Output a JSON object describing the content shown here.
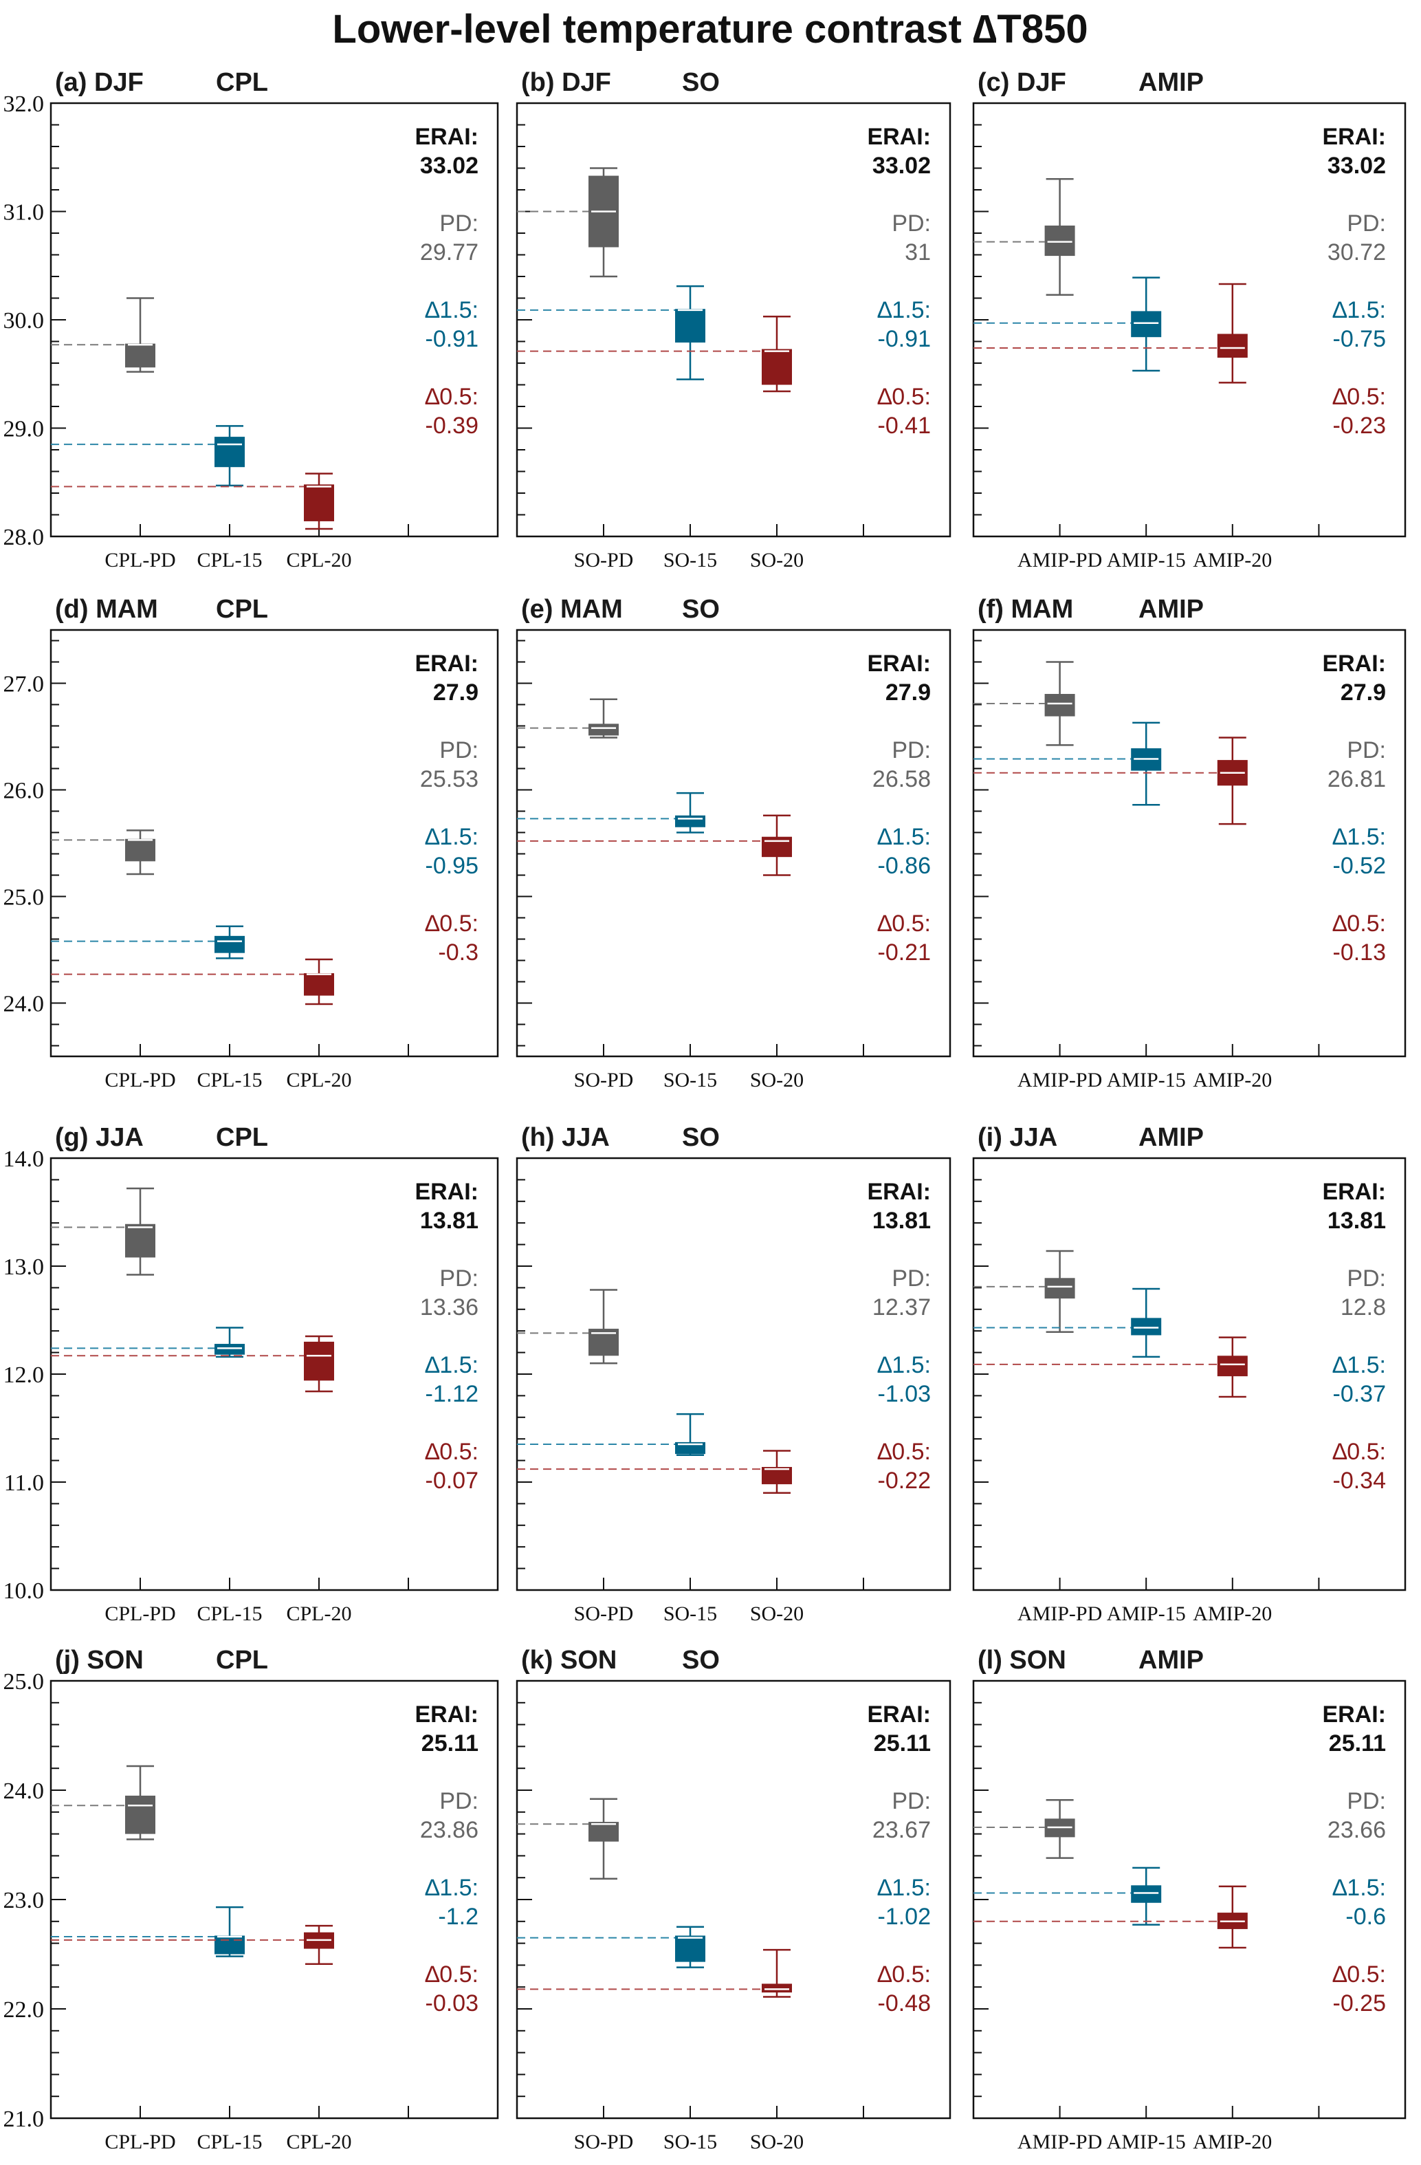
{
  "colors": {
    "erai": "#111111",
    "pd": "#5f5f5f",
    "pd_text": "#666666",
    "d15": "#006487",
    "d05": "#8b1a1a",
    "median": "#ffffff"
  },
  "chart_data": {
    "type": "boxplot-grid",
    "title": "Lower-level temperature contrast ∆T850",
    "rows": 4,
    "cols": 3,
    "panels": [
      {
        "id": "a",
        "label": "(a) DJF",
        "model": "CPL",
        "ylim": [
          28,
          32
        ],
        "yticks": [
          "32.0",
          "31.0",
          "30.0",
          "29.0",
          "28.0"
        ],
        "show_ytick_labels": true,
        "categories": [
          "CPL-PD",
          "CPL-15",
          "CPL-20"
        ],
        "boxes": [
          {
            "whislo": 29.52,
            "q1": 29.56,
            "med": 29.77,
            "q3": 29.78,
            "whishi": 30.2
          },
          {
            "whislo": 28.47,
            "q1": 28.64,
            "med": 28.85,
            "q3": 28.92,
            "whishi": 29.02
          },
          {
            "whislo": 28.07,
            "q1": 28.14,
            "med": 28.46,
            "q3": 28.48,
            "whishi": 28.58
          }
        ],
        "annotations": {
          "erai_label": "ERAI:",
          "erai": "33.02",
          "pd_label": "PD:",
          "pd": "29.77",
          "d15_label": "∆1.5:",
          "d15": "-0.91",
          "d05_label": "∆0.5:",
          "d05": "-0.39"
        }
      },
      {
        "id": "b",
        "label": "(b) DJF",
        "model": "SO",
        "ylim": [
          28,
          32
        ],
        "yticks": [
          "32.0",
          "31.0",
          "30.0",
          "29.0",
          "28.0"
        ],
        "show_ytick_labels": false,
        "categories": [
          "SO-PD",
          "SO-15",
          "SO-20"
        ],
        "boxes": [
          {
            "whislo": 30.4,
            "q1": 30.67,
            "med": 31.0,
            "q3": 31.33,
            "whishi": 31.4
          },
          {
            "whislo": 29.45,
            "q1": 29.79,
            "med": 30.09,
            "q3": 30.1,
            "whishi": 30.31
          },
          {
            "whislo": 29.34,
            "q1": 29.4,
            "med": 29.71,
            "q3": 29.73,
            "whishi": 30.03
          }
        ],
        "annotations": {
          "erai_label": "ERAI:",
          "erai": "33.02",
          "pd_label": "PD:",
          "pd": "31",
          "d15_label": "∆1.5:",
          "d15": "-0.91",
          "d05_label": "∆0.5:",
          "d05": "-0.41"
        }
      },
      {
        "id": "c",
        "label": "(c) DJF",
        "model": "AMIP",
        "ylim": [
          28,
          32
        ],
        "yticks": [
          "32.0",
          "31.0",
          "30.0",
          "29.0",
          "28.0"
        ],
        "show_ytick_labels": false,
        "categories": [
          "AMIP-PD",
          "AMIP-15",
          "AMIP-20"
        ],
        "boxes": [
          {
            "whislo": 30.23,
            "q1": 30.59,
            "med": 30.72,
            "q3": 30.87,
            "whishi": 31.3
          },
          {
            "whislo": 29.53,
            "q1": 29.84,
            "med": 29.97,
            "q3": 30.08,
            "whishi": 30.39
          },
          {
            "whislo": 29.42,
            "q1": 29.65,
            "med": 29.74,
            "q3": 29.87,
            "whishi": 30.33
          }
        ],
        "annotations": {
          "erai_label": "ERAI:",
          "erai": "33.02",
          "pd_label": "PD:",
          "pd": "30.72",
          "d15_label": "∆1.5:",
          "d15": "-0.75",
          "d05_label": "∆0.5:",
          "d05": "-0.23"
        }
      },
      {
        "id": "d",
        "label": "(d) MAM",
        "model": "CPL",
        "ylim": [
          23.5,
          27.5
        ],
        "yticks": [
          "27.0",
          "26.0",
          "25.0",
          "24.0"
        ],
        "show_ytick_labels": true,
        "categories": [
          "CPL-PD",
          "CPL-15",
          "CPL-20"
        ],
        "boxes": [
          {
            "whislo": 25.21,
            "q1": 25.33,
            "med": 25.53,
            "q3": 25.54,
            "whishi": 25.62
          },
          {
            "whislo": 24.42,
            "q1": 24.47,
            "med": 24.58,
            "q3": 24.63,
            "whishi": 24.72
          },
          {
            "whislo": 23.99,
            "q1": 24.07,
            "med": 24.27,
            "q3": 24.28,
            "whishi": 24.41
          }
        ],
        "annotations": {
          "erai_label": "ERAI:",
          "erai": "27.9",
          "pd_label": "PD:",
          "pd": "25.53",
          "d15_label": "∆1.5:",
          "d15": "-0.95",
          "d05_label": "∆0.5:",
          "d05": "-0.3"
        }
      },
      {
        "id": "e",
        "label": "(e) MAM",
        "model": "SO",
        "ylim": [
          23.5,
          27.5
        ],
        "yticks": [
          "27.0",
          "26.0",
          "25.0",
          "24.0"
        ],
        "show_ytick_labels": false,
        "categories": [
          "SO-PD",
          "SO-15",
          "SO-20"
        ],
        "boxes": [
          {
            "whislo": 26.49,
            "q1": 26.51,
            "med": 26.58,
            "q3": 26.62,
            "whishi": 26.85
          },
          {
            "whislo": 25.6,
            "q1": 25.65,
            "med": 25.73,
            "q3": 25.76,
            "whishi": 25.97
          },
          {
            "whislo": 25.2,
            "q1": 25.37,
            "med": 25.52,
            "q3": 25.56,
            "whishi": 25.76
          }
        ],
        "annotations": {
          "erai_label": "ERAI:",
          "erai": "27.9",
          "pd_label": "PD:",
          "pd": "26.58",
          "d15_label": "∆1.5:",
          "d15": "-0.86",
          "d05_label": "∆0.5:",
          "d05": "-0.21"
        }
      },
      {
        "id": "f",
        "label": "(f) MAM",
        "model": "AMIP",
        "ylim": [
          23.5,
          27.5
        ],
        "yticks": [
          "27.0",
          "26.0",
          "25.0",
          "24.0"
        ],
        "show_ytick_labels": false,
        "categories": [
          "AMIP-PD",
          "AMIP-15",
          "AMIP-20"
        ],
        "boxes": [
          {
            "whislo": 26.42,
            "q1": 26.69,
            "med": 26.81,
            "q3": 26.9,
            "whishi": 27.2
          },
          {
            "whislo": 25.86,
            "q1": 26.18,
            "med": 26.29,
            "q3": 26.39,
            "whishi": 26.63
          },
          {
            "whislo": 25.68,
            "q1": 26.04,
            "med": 26.16,
            "q3": 26.28,
            "whishi": 26.49
          }
        ],
        "annotations": {
          "erai_label": "ERAI:",
          "erai": "27.9",
          "pd_label": "PD:",
          "pd": "26.81",
          "d15_label": "∆1.5:",
          "d15": "-0.52",
          "d05_label": "∆0.5:",
          "d05": "-0.13"
        }
      },
      {
        "id": "g",
        "label": "(g) JJA",
        "model": "CPL",
        "ylim": [
          10,
          14
        ],
        "yticks": [
          "14.0",
          "13.0",
          "12.0",
          "11.0",
          "10.0"
        ],
        "show_ytick_labels": true,
        "categories": [
          "CPL-PD",
          "CPL-15",
          "CPL-20"
        ],
        "boxes": [
          {
            "whislo": 12.92,
            "q1": 13.08,
            "med": 13.36,
            "q3": 13.39,
            "whishi": 13.72
          },
          {
            "whislo": 12.16,
            "q1": 12.18,
            "med": 12.24,
            "q3": 12.28,
            "whishi": 12.43
          },
          {
            "whislo": 11.84,
            "q1": 11.94,
            "med": 12.17,
            "q3": 12.3,
            "whishi": 12.35
          }
        ],
        "annotations": {
          "erai_label": "ERAI:",
          "erai": "13.81",
          "pd_label": "PD:",
          "pd": "13.36",
          "d15_label": "∆1.5:",
          "d15": "-1.12",
          "d05_label": "∆0.5:",
          "d05": "-0.07"
        }
      },
      {
        "id": "h",
        "label": "(h) JJA",
        "model": "SO",
        "ylim": [
          10,
          14
        ],
        "yticks": [
          "14.0",
          "13.0",
          "12.0",
          "11.0",
          "10.0"
        ],
        "show_ytick_labels": false,
        "categories": [
          "SO-PD",
          "SO-15",
          "SO-20"
        ],
        "boxes": [
          {
            "whislo": 12.1,
            "q1": 12.17,
            "med": 12.38,
            "q3": 12.42,
            "whishi": 12.78
          },
          {
            "whislo": 11.25,
            "q1": 11.26,
            "med": 11.35,
            "q3": 11.37,
            "whishi": 11.63
          },
          {
            "whislo": 10.9,
            "q1": 10.98,
            "med": 11.12,
            "q3": 11.14,
            "whishi": 11.29
          }
        ],
        "annotations": {
          "erai_label": "ERAI:",
          "erai": "13.81",
          "pd_label": "PD:",
          "pd": "12.37",
          "d15_label": "∆1.5:",
          "d15": "-1.03",
          "d05_label": "∆0.5:",
          "d05": "-0.22"
        }
      },
      {
        "id": "i",
        "label": "(i) JJA",
        "model": "AMIP",
        "ylim": [
          10,
          14
        ],
        "yticks": [
          "14.0",
          "13.0",
          "12.0",
          "11.0",
          "10.0"
        ],
        "show_ytick_labels": false,
        "categories": [
          "AMIP-PD",
          "AMIP-15",
          "AMIP-20"
        ],
        "boxes": [
          {
            "whislo": 12.39,
            "q1": 12.7,
            "med": 12.81,
            "q3": 12.89,
            "whishi": 13.14
          },
          {
            "whislo": 12.16,
            "q1": 12.36,
            "med": 12.43,
            "q3": 12.52,
            "whishi": 12.79
          },
          {
            "whislo": 11.79,
            "q1": 11.98,
            "med": 12.09,
            "q3": 12.17,
            "whishi": 12.34
          }
        ],
        "annotations": {
          "erai_label": "ERAI:",
          "erai": "13.81",
          "pd_label": "PD:",
          "pd": "12.8",
          "d15_label": "∆1.5:",
          "d15": "-0.37",
          "d05_label": "∆0.5:",
          "d05": "-0.34"
        }
      },
      {
        "id": "j",
        "label": "(j) SON",
        "model": "CPL",
        "ylim": [
          21,
          25
        ],
        "yticks": [
          "25.0",
          "24.0",
          "23.0",
          "22.0",
          "21.0"
        ],
        "show_ytick_labels": true,
        "categories": [
          "CPL-PD",
          "CPL-15",
          "CPL-20"
        ],
        "boxes": [
          {
            "whislo": 23.55,
            "q1": 23.6,
            "med": 23.86,
            "q3": 23.95,
            "whishi": 24.22
          },
          {
            "whislo": 22.48,
            "q1": 22.5,
            "med": 22.66,
            "q3": 22.67,
            "whishi": 22.93
          },
          {
            "whislo": 22.41,
            "q1": 22.55,
            "med": 22.63,
            "q3": 22.7,
            "whishi": 22.76
          }
        ],
        "annotations": {
          "erai_label": "ERAI:",
          "erai": "25.11",
          "pd_label": "PD:",
          "pd": "23.86",
          "d15_label": "∆1.5:",
          "d15": "-1.2",
          "d05_label": "∆0.5:",
          "d05": "-0.03"
        }
      },
      {
        "id": "k",
        "label": "(k) SON",
        "model": "SO",
        "ylim": [
          21,
          25
        ],
        "yticks": [
          "25.0",
          "24.0",
          "23.0",
          "22.0",
          "21.0"
        ],
        "show_ytick_labels": false,
        "categories": [
          "SO-PD",
          "SO-15",
          "SO-20"
        ],
        "boxes": [
          {
            "whislo": 23.19,
            "q1": 23.53,
            "med": 23.69,
            "q3": 23.71,
            "whishi": 23.92
          },
          {
            "whislo": 22.38,
            "q1": 22.43,
            "med": 22.65,
            "q3": 22.67,
            "whishi": 22.75
          },
          {
            "whislo": 22.11,
            "q1": 22.15,
            "med": 22.18,
            "q3": 22.23,
            "whishi": 22.54
          }
        ],
        "annotations": {
          "erai_label": "ERAI:",
          "erai": "25.11",
          "pd_label": "PD:",
          "pd": "23.67",
          "d15_label": "∆1.5:",
          "d15": "-1.02",
          "d05_label": "∆0.5:",
          "d05": "-0.48"
        }
      },
      {
        "id": "l",
        "label": "(l) SON",
        "model": "AMIP",
        "ylim": [
          21,
          25
        ],
        "yticks": [
          "25.0",
          "24.0",
          "23.0",
          "22.0",
          "21.0"
        ],
        "show_ytick_labels": false,
        "categories": [
          "AMIP-PD",
          "AMIP-15",
          "AMIP-20"
        ],
        "boxes": [
          {
            "whislo": 23.38,
            "q1": 23.57,
            "med": 23.66,
            "q3": 23.74,
            "whishi": 23.91
          },
          {
            "whislo": 22.77,
            "q1": 22.97,
            "med": 23.06,
            "q3": 23.13,
            "whishi": 23.29
          },
          {
            "whislo": 22.56,
            "q1": 22.73,
            "med": 22.8,
            "q3": 22.88,
            "whishi": 23.12
          }
        ],
        "annotations": {
          "erai_label": "ERAI:",
          "erai": "25.11",
          "pd_label": "PD:",
          "pd": "23.66",
          "d15_label": "∆1.5:",
          "d15": "-0.6",
          "d05_label": "∆0.5:",
          "d05": "-0.25"
        }
      }
    ]
  }
}
